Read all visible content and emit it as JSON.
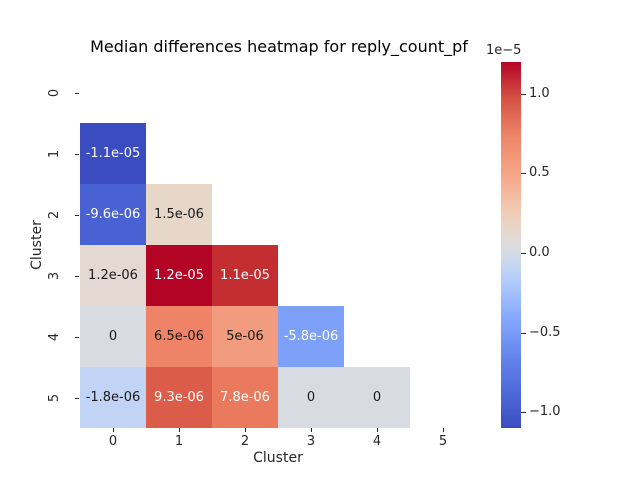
{
  "figure": {
    "background": "#ffffff"
  },
  "chart_data": {
    "type": "heatmap",
    "title": "Median differences heatmap for reply_count_pf",
    "xlabel": "Cluster",
    "ylabel": "Cluster",
    "x_ticks": [
      "0",
      "1",
      "2",
      "3",
      "4",
      "5"
    ],
    "y_ticks": [
      "0",
      "1",
      "2",
      "3",
      "4",
      "5"
    ],
    "colormap": "coolwarm",
    "mask": "upper triangle and diagonal are blank",
    "scale_label": "1e−5",
    "colorbar": {
      "position": "right",
      "tick_labels": [
        "1.0",
        "0.5",
        "0.0",
        "−0.5",
        "−1.0"
      ],
      "tick_values": [
        1.0,
        0.5,
        0.0,
        -0.5,
        -1.0
      ],
      "multiplier": 1e-05,
      "vmin": -1.1e-05,
      "vmax": 1.2e-05
    },
    "matrix": [
      [
        null,
        null,
        null,
        null,
        null,
        null
      ],
      [
        -1.1e-05,
        null,
        null,
        null,
        null,
        null
      ],
      [
        -9.6e-06,
        1.5e-06,
        null,
        null,
        null,
        null
      ],
      [
        1.2e-06,
        1.2e-05,
        1.1e-05,
        null,
        null,
        null
      ],
      [
        0,
        6.5e-06,
        5e-06,
        -5.8e-06,
        null,
        null
      ],
      [
        -1.8e-06,
        9.3e-06,
        7.8e-06,
        0,
        0,
        null
      ]
    ],
    "cells": [
      {
        "row": 1,
        "col": 0,
        "value": -1.1e-05,
        "label": "-1.1e-05",
        "bg": "#3b4cc0",
        "fg": "#ffffff"
      },
      {
        "row": 2,
        "col": 0,
        "value": -9.6e-06,
        "label": "-9.6e-06",
        "bg": "#4961d2",
        "fg": "#ffffff"
      },
      {
        "row": 2,
        "col": 1,
        "value": 1.5e-06,
        "label": "1.5e-06",
        "bg": "#e6d7c9",
        "fg": "#1a1a1a"
      },
      {
        "row": 3,
        "col": 0,
        "value": 1.2e-06,
        "label": "1.2e-06",
        "bg": "#e4d9d2",
        "fg": "#1a1a1a"
      },
      {
        "row": 3,
        "col": 1,
        "value": 1.2e-05,
        "label": "1.2e-05",
        "bg": "#b40426",
        "fg": "#ffffff"
      },
      {
        "row": 3,
        "col": 2,
        "value": 1.1e-05,
        "label": "1.1e-05",
        "bg": "#c32e31",
        "fg": "#ffffff"
      },
      {
        "row": 4,
        "col": 0,
        "value": 0,
        "label": "0",
        "bg": "#d8dce2",
        "fg": "#1a1a1a"
      },
      {
        "row": 4,
        "col": 1,
        "value": 6.5e-06,
        "label": "6.5e-06",
        "bg": "#ee8368",
        "fg": "#1a1a1a"
      },
      {
        "row": 4,
        "col": 2,
        "value": 5e-06,
        "label": "5e-06",
        "bg": "#f19c7f",
        "fg": "#1a1a1a"
      },
      {
        "row": 4,
        "col": 3,
        "value": -5.8e-06,
        "label": "-5.8e-06",
        "bg": "#7da0f9",
        "fg": "#ffffff"
      },
      {
        "row": 5,
        "col": 0,
        "value": -1.8e-06,
        "label": "-1.8e-06",
        "bg": "#c2d4f5",
        "fg": "#1a1a1a"
      },
      {
        "row": 5,
        "col": 1,
        "value": 9.3e-06,
        "label": "9.3e-06",
        "bg": "#db5c49",
        "fg": "#ffffff"
      },
      {
        "row": 5,
        "col": 2,
        "value": 7.8e-06,
        "label": "7.8e-06",
        "bg": "#e97a5e",
        "fg": "#ffffff"
      },
      {
        "row": 5,
        "col": 3,
        "value": 0,
        "label": "0",
        "bg": "#d8dce2",
        "fg": "#1a1a1a"
      },
      {
        "row": 5,
        "col": 4,
        "value": 0,
        "label": "0",
        "bg": "#d8dce2",
        "fg": "#1a1a1a"
      }
    ]
  }
}
